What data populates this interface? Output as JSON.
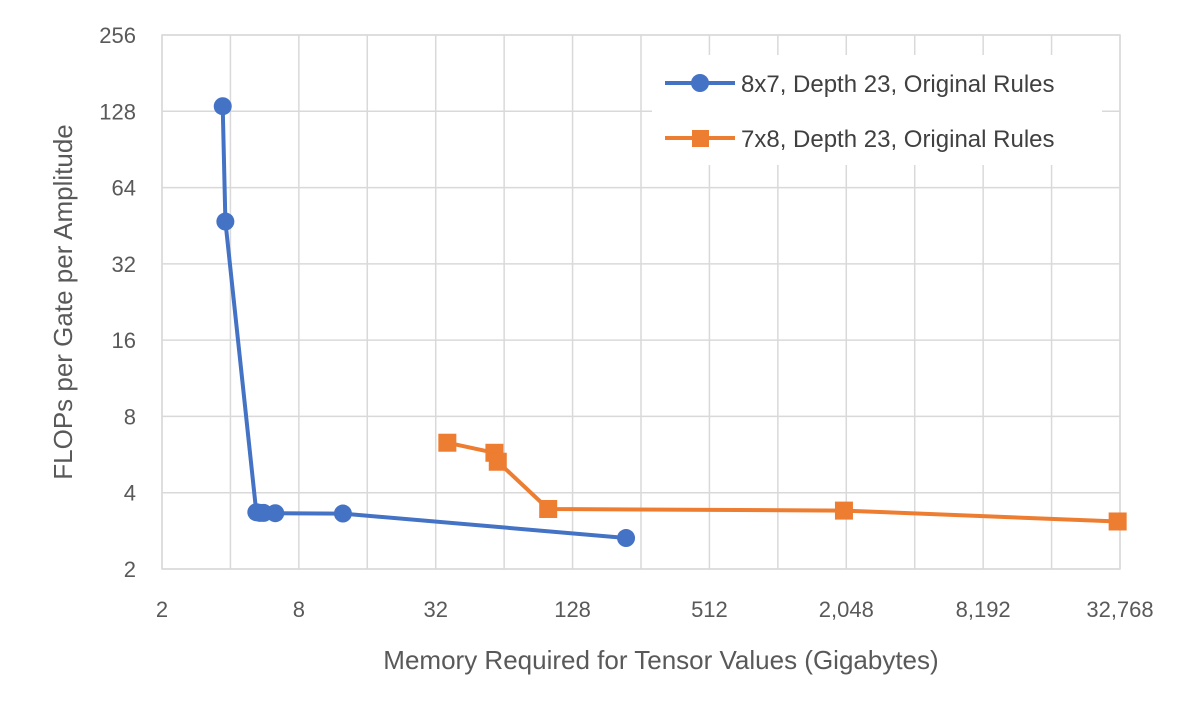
{
  "chart_data": {
    "type": "scatter",
    "xlabel": "Memory Required for Tensor Values (Gigabytes)",
    "ylabel": "FLOPs per Gate per Amplitude",
    "x_scale": "log2",
    "y_scale": "log2",
    "xlim": [
      2,
      32768
    ],
    "ylim": [
      2,
      256
    ],
    "x_ticks": [
      2,
      8,
      32,
      128,
      512,
      2048,
      8192,
      32768
    ],
    "x_tick_labels": [
      "2",
      "8",
      "32",
      "128",
      "512",
      "2,048",
      "8,192",
      "32,768"
    ],
    "x_grid": [
      2,
      4,
      8,
      16,
      32,
      64,
      128,
      256,
      512,
      1024,
      2048,
      4096,
      8192,
      16384,
      32768
    ],
    "y_ticks": [
      2,
      4,
      8,
      16,
      32,
      64,
      128,
      256
    ],
    "y_tick_labels": [
      "2",
      "4",
      "8",
      "16",
      "32",
      "64",
      "128",
      "256"
    ],
    "grid": true,
    "legend_position": "top-right",
    "series": [
      {
        "name": "8x7, Depth 23, Original Rules",
        "color": "#4472c4",
        "marker": "circle",
        "points": [
          {
            "x": 3.7,
            "y": 134
          },
          {
            "x": 3.8,
            "y": 47
          },
          {
            "x": 5.2,
            "y": 3.35
          },
          {
            "x": 5.4,
            "y": 3.33
          },
          {
            "x": 5.6,
            "y": 3.33
          },
          {
            "x": 6.3,
            "y": 3.32
          },
          {
            "x": 12.5,
            "y": 3.31
          },
          {
            "x": 220,
            "y": 2.65
          }
        ]
      },
      {
        "name": "7x8, Depth 23, Original Rules",
        "color": "#ed7d31",
        "marker": "square",
        "points": [
          {
            "x": 36,
            "y": 6.3
          },
          {
            "x": 58,
            "y": 5.75
          },
          {
            "x": 60,
            "y": 5.3
          },
          {
            "x": 100,
            "y": 3.45
          },
          {
            "x": 2000,
            "y": 3.4
          },
          {
            "x": 32000,
            "y": 3.08
          }
        ]
      }
    ]
  }
}
